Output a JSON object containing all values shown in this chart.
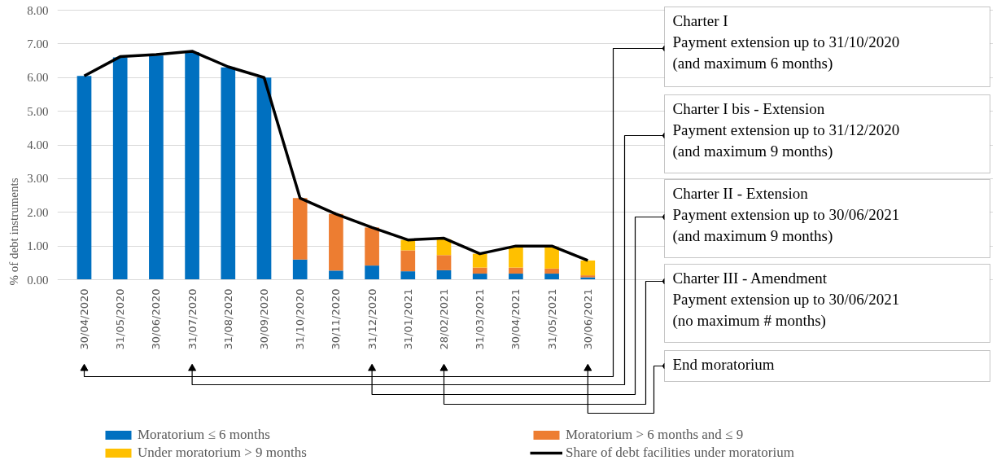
{
  "chart_data": {
    "type": "bar",
    "stacked": true,
    "ylabel": "% of debt instruments",
    "categories": [
      "30/04/2020",
      "31/05/2020",
      "30/06/2020",
      "31/07/2020",
      "31/08/2020",
      "30/09/2020",
      "31/10/2020",
      "30/11/2020",
      "31/12/2020",
      "31/01/2021",
      "28/02/2021",
      "31/03/2021",
      "30/04/2021",
      "31/05/2021",
      "30/06/2021"
    ],
    "series": [
      {
        "name": "Moratorium ≤ 6 months",
        "color": "#0070c0",
        "values": [
          6.05,
          6.6,
          6.65,
          6.75,
          6.3,
          6.0,
          0.6,
          0.27,
          0.42,
          0.25,
          0.28,
          0.18,
          0.18,
          0.18,
          0.07
        ]
      },
      {
        "name": "Moratorium > 6 months and ≤ 9",
        "color": "#ed7d31",
        "values": [
          null,
          null,
          null,
          null,
          null,
          null,
          1.82,
          1.68,
          1.13,
          0.62,
          0.45,
          0.18,
          0.18,
          0.15,
          0.06
        ]
      },
      {
        "name": "Under moratorium > 9 months",
        "color": "#ffc000",
        "values": [
          null,
          null,
          null,
          null,
          null,
          null,
          null,
          null,
          null,
          0.31,
          0.47,
          0.41,
          0.61,
          0.64,
          0.44
        ]
      },
      {
        "name": "Share of debt facilities under moratorium",
        "type": "line",
        "color": "#000000",
        "values": [
          6.05,
          6.62,
          6.68,
          6.78,
          6.32,
          6.0,
          2.42,
          1.95,
          1.55,
          1.18,
          1.23,
          0.77,
          1.0,
          1.0,
          0.57
        ]
      }
    ],
    "ylim": [
      0,
      8
    ],
    "yticks": [
      {
        "value": 0,
        "label": "0.00"
      },
      {
        "value": 1,
        "label": "1.00"
      },
      {
        "value": 2,
        "label": "2.00"
      },
      {
        "value": 3,
        "label": "3.00"
      },
      {
        "value": 4,
        "label": "4.00"
      },
      {
        "value": 5,
        "label": "5.00"
      },
      {
        "value": 6,
        "label": "6.00"
      },
      {
        "value": 7,
        "label": "7.00"
      },
      {
        "value": 8,
        "label": "8.00"
      }
    ],
    "grid": "y",
    "legend": "bottom",
    "marker": "none",
    "annotations": [
      "Charter I\nPayment extension up to 31/10/2020\n(and maximum 6 months)",
      "Charter I bis - Extension\nPayment extension up to 31/12/2020\n(and maximum 9 months)",
      "Charter II - Extension\nPayment extension up to 30/06/2021\n(and maximum 9 months)",
      "Charter III - Amendment\nPayment extension up to 30/06/2021\n(no maximum # months)",
      "End moratorium"
    ]
  }
}
